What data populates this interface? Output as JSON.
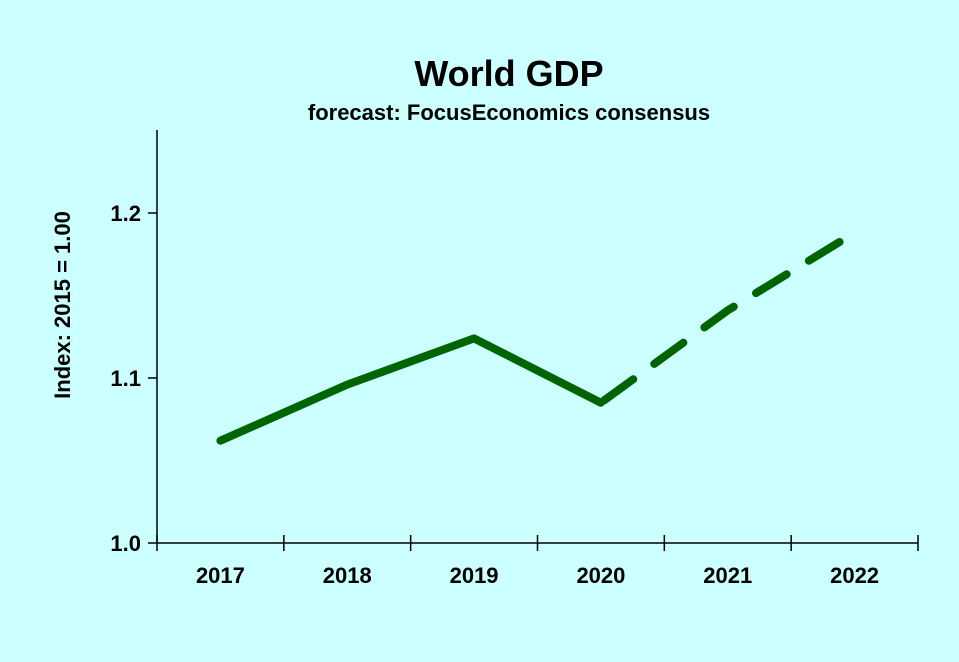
{
  "chart_data": {
    "type": "line",
    "title": "World GDP",
    "subtitle": "forecast: FocusEconomics consensus",
    "xlabel": "",
    "ylabel": "Index: 2015 = 1.00",
    "categories": [
      "2017",
      "2018",
      "2019",
      "2020",
      "2021",
      "2022"
    ],
    "ylim": [
      1.0,
      1.25
    ],
    "yticks": [
      1.0,
      1.1,
      1.2
    ],
    "ytick_labels": [
      "1.0",
      "1.1",
      "1.2"
    ],
    "grid": false,
    "legend": "none",
    "series": [
      {
        "values": [
          1.062,
          1.096,
          1.124,
          1.085,
          1.141,
          1.188
        ],
        "color": "#006400",
        "solid_through": "2020",
        "dashed_from": "2020"
      }
    ]
  },
  "colors": {
    "background": "#ccffff",
    "line": "#006400",
    "axis": "#000000"
  }
}
